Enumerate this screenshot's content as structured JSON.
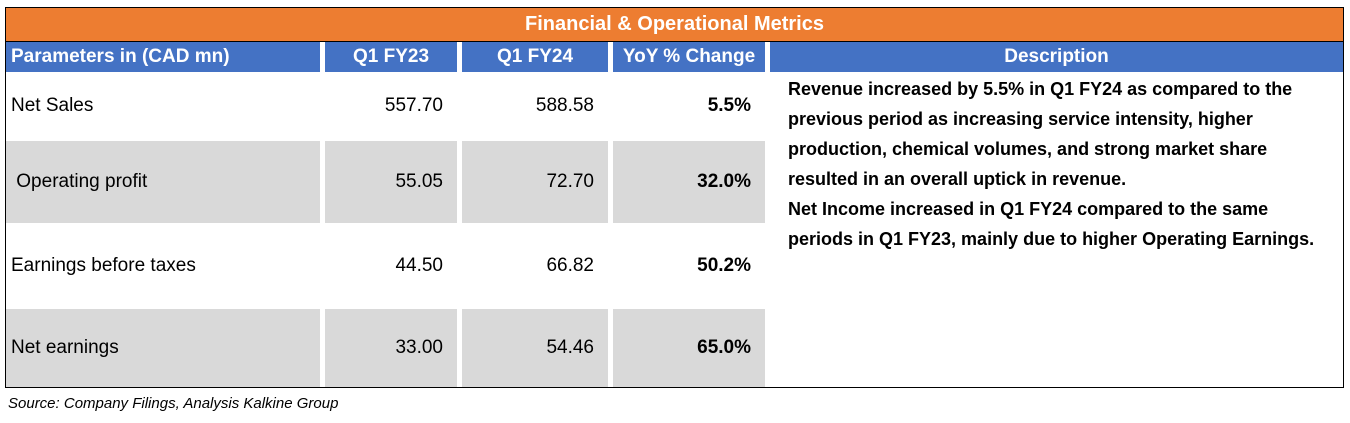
{
  "table": {
    "title": "Financial & Operational Metrics",
    "headers": {
      "param": "Parameters in (CAD mn)",
      "q1fy23": "Q1 FY23",
      "q1fy24": "Q1 FY24",
      "yoy": "YoY % Change",
      "description": "Description"
    },
    "rows": [
      {
        "param": "Net Sales",
        "q1fy23": "557.70",
        "q1fy24": "588.58",
        "yoy": "5.5%"
      },
      {
        "param": " Operating profit",
        "q1fy23": "55.05",
        "q1fy24": "72.70",
        "yoy": "32.0%"
      },
      {
        "param": "Earnings before taxes",
        "q1fy23": "44.50",
        "q1fy24": "66.82",
        "yoy": "50.2%"
      },
      {
        "param": "Net earnings",
        "q1fy23": "33.00",
        "q1fy24": "54.46",
        "yoy": "65.0%"
      }
    ],
    "description": {
      "p1": "Revenue increased  by 5.5% in  Q1 FY24 as compared to the previous period as increasing service intensity, higher production, chemical volumes, and strong market share resulted in an overall uptick in revenue.",
      "p2": "Net Income increased in  Q1 FY24 compared to the same periods in Q1 FY23, mainly due to higher Operating Earnings."
    }
  },
  "source": "Source: Company Filings, Analysis Kalkine Group",
  "colors": {
    "title_bg": "#ED7D31",
    "header_bg": "#4472C4",
    "shade_bg": "#D9D9D9"
  }
}
